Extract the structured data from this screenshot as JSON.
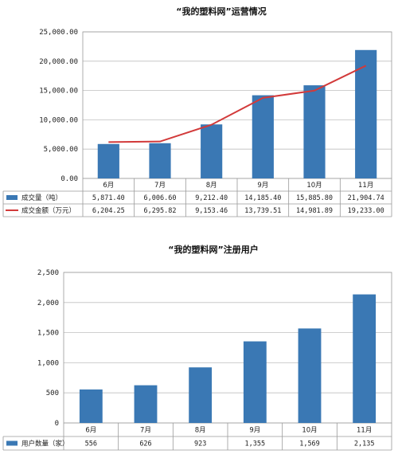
{
  "chart_data": [
    {
      "type": "bar",
      "title": "“我的塑料网”运营情况",
      "categories": [
        "6月",
        "7月",
        "8月",
        "9月",
        "10月",
        "11月"
      ],
      "ylim": [
        0,
        25000
      ],
      "yticks": [
        "25,000.00",
        "20,000.00",
        "15,000.00",
        "10,000.00",
        "5,000.00",
        "0.00"
      ],
      "grid": true,
      "colors": {
        "bar": "#3a78b4",
        "line": "#d23a3a"
      },
      "series": [
        {
          "name": "成交量（吨）",
          "kind": "bar",
          "values": [
            5871.4,
            6006.6,
            9212.4,
            14185.4,
            15885.8,
            21904.74
          ],
          "labels": [
            "5,871.40",
            "6,006.60",
            "9,212.40",
            "14,185.40",
            "15,885.80",
            "21,904.74"
          ]
        },
        {
          "name": "成交金额（万元）",
          "kind": "line",
          "values": [
            6204.25,
            6295.82,
            9153.46,
            13739.51,
            14981.89,
            19233.0
          ],
          "labels": [
            "6,204.25",
            "6,295.82",
            "9,153.46",
            "13,739.51",
            "14,981.89",
            "19,233.00"
          ]
        }
      ]
    },
    {
      "type": "bar",
      "title": "“我的塑料网”注册用户",
      "categories": [
        "6月",
        "7月",
        "8月",
        "9月",
        "10月",
        "11月"
      ],
      "ylim": [
        0,
        2500
      ],
      "yticks": [
        "2,500",
        "2,000",
        "1,500",
        "1,000",
        "500",
        "0"
      ],
      "grid": true,
      "colors": {
        "bar": "#3a78b4"
      },
      "series": [
        {
          "name": "用户数量（家）",
          "kind": "bar",
          "values": [
            556,
            626,
            923,
            1355,
            1569,
            2135
          ],
          "labels": [
            "556",
            "626",
            "923",
            "1,355",
            "1,569",
            "2,135"
          ]
        }
      ]
    }
  ]
}
